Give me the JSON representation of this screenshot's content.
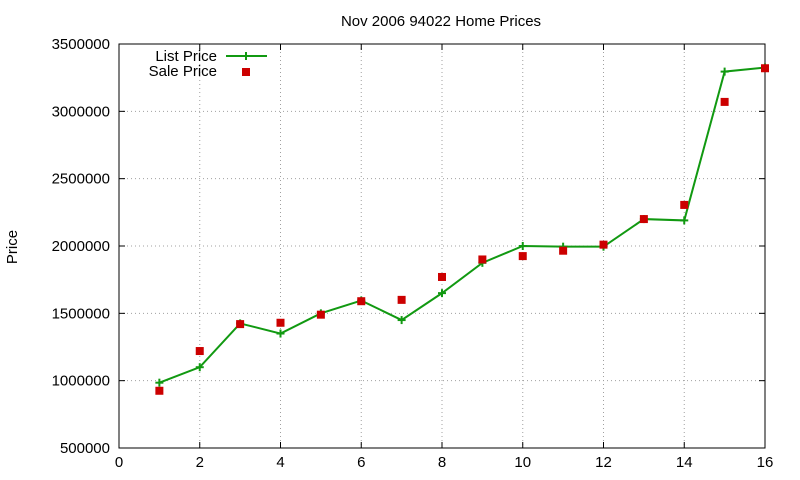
{
  "chart_data": {
    "type": "line",
    "title": "Nov 2006 94022 Home Prices",
    "xlabel": "",
    "ylabel": "Price",
    "xlim": [
      0,
      16
    ],
    "ylim": [
      500000,
      3500000
    ],
    "x_ticks": [
      "0",
      "2",
      "4",
      "6",
      "8",
      "10",
      "12",
      "14",
      "16"
    ],
    "y_ticks": [
      "500000",
      "1000000",
      "1500000",
      "2000000",
      "2500000",
      "3000000",
      "3500000"
    ],
    "grid": true,
    "legend_position": "top-left",
    "series": [
      {
        "name": "List Price",
        "style": "line+cross",
        "color": "#119911",
        "x": [
          1,
          2,
          3,
          4,
          5,
          6,
          7,
          8,
          9,
          10,
          11,
          12,
          13,
          14,
          15,
          16
        ],
        "y": [
          985000,
          1100000,
          1425000,
          1350000,
          1500000,
          1595000,
          1450000,
          1650000,
          1875000,
          2000000,
          1995000,
          1995000,
          2200000,
          2190000,
          3295000,
          3325000
        ]
      },
      {
        "name": "Sale Price",
        "style": "square",
        "color": "#cc0000",
        "x": [
          1,
          2,
          3,
          4,
          5,
          6,
          7,
          8,
          9,
          10,
          11,
          12,
          13,
          14,
          15,
          16
        ],
        "y": [
          925000,
          1220000,
          1420000,
          1430000,
          1490000,
          1590000,
          1600000,
          1770000,
          1900000,
          1925000,
          1965000,
          2010000,
          2200000,
          2305000,
          3070000,
          3320000
        ]
      }
    ]
  }
}
